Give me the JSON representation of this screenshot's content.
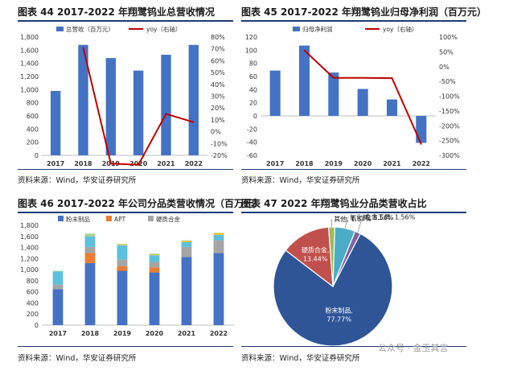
{
  "page": {
    "source": "资料来源：Wind，华安证券研究所",
    "watermark": "公众号 · 金玉其言"
  },
  "colors": {
    "bar": "#4472c4",
    "line": "#c00000",
    "rule": "#1f3a78",
    "powder": "#4472c4",
    "apt": "#ed7d31",
    "hard": "#a5a5a5",
    "alloy": "#ffc000",
    "tungsten_oxide": "#5bc0de",
    "other": "#a9d18e",
    "pie_powder": "#2f5597",
    "pie_hard": "#c0504d",
    "pie_alloy": "#8064a2",
    "pie_oxide": "#4bacc6",
    "pie_other": "#9bbb59"
  },
  "chart_data": [
    {
      "id": "fig44",
      "type": "bar",
      "title": "图表 44 2017-2022 年翔鹭钨业总营收情况",
      "categories": [
        "2017",
        "2018",
        "2019",
        "2020",
        "2021",
        "2022"
      ],
      "series": [
        {
          "name": "总营收（百万元）",
          "type": "bar",
          "axis": "left",
          "values": [
            980,
            1680,
            1480,
            1290,
            1530,
            1680
          ]
        },
        {
          "name": "yoy（右轴）",
          "type": "line",
          "axis": "right",
          "values": [
            null,
            71,
            -27,
            -28,
            15,
            8
          ]
        }
      ],
      "ylim": [
        0,
        1800
      ],
      "yticks": [
        "0",
        "200",
        "400",
        "600",
        "800",
        "1,000",
        "1,200",
        "1,400",
        "1,600",
        "1,800"
      ],
      "y2lim": [
        -20,
        80
      ],
      "y2ticks": [
        "-20%",
        "-10%",
        "0%",
        "10%",
        "20%",
        "30%",
        "40%",
        "50%",
        "60%",
        "70%",
        "80%"
      ],
      "legend": "top"
    },
    {
      "id": "fig45",
      "type": "bar",
      "title": "图表 45 2017-2022 年翔鹭钨业归母净利润（百万元）",
      "categories": [
        "2017",
        "2018",
        "2019",
        "2020",
        "2021",
        "2022"
      ],
      "series": [
        {
          "name": "归母净利润",
          "type": "bar",
          "axis": "left",
          "values": [
            69,
            107,
            66,
            41,
            25,
            -41
          ]
        },
        {
          "name": "yoy（右轴）",
          "type": "line",
          "axis": "right",
          "values": [
            null,
            55,
            -38,
            -38,
            -39,
            -262
          ]
        }
      ],
      "ylim": [
        -60,
        120
      ],
      "yticks": [
        "-60",
        "-40",
        "-20",
        "0",
        "20",
        "40",
        "60",
        "80",
        "100",
        "120"
      ],
      "y2lim": [
        -300,
        100
      ],
      "y2ticks": [
        "-300%",
        "-250%",
        "-200%",
        "-150%",
        "-100%",
        "-50%",
        "0%",
        "50%",
        "100%"
      ],
      "legend": "top"
    },
    {
      "id": "fig46",
      "type": "bar",
      "stacked": true,
      "title": "图表 46 2017-2022 年公司分品类营收情况（百万元）",
      "categories": [
        "2017",
        "2018",
        "2019",
        "2020",
        "2021",
        "2022"
      ],
      "series": [
        {
          "name": "粉末制品",
          "key": "powder",
          "values": [
            650,
            1120,
            980,
            950,
            1230,
            1300
          ]
        },
        {
          "name": "APT",
          "key": "apt",
          "values": [
            0,
            180,
            80,
            90,
            0,
            0
          ]
        },
        {
          "name": "硬质合金",
          "key": "hard",
          "values": [
            80,
            110,
            120,
            100,
            180,
            230
          ]
        },
        {
          "name": "",
          "key": "tungsten_oxide",
          "values": [
            240,
            190,
            260,
            120,
            90,
            100
          ]
        },
        {
          "name": "",
          "key": "alloy",
          "values": [
            0,
            0,
            10,
            10,
            20,
            25
          ]
        },
        {
          "name": "",
          "key": "other",
          "values": [
            10,
            50,
            15,
            20,
            10,
            10
          ]
        }
      ],
      "ylim": [
        0,
        1800
      ],
      "yticks": [
        "0",
        "200",
        "400",
        "600",
        "800",
        "1,000",
        "1,200",
        "1,400",
        "1,600",
        "1,800"
      ],
      "legend": "top"
    },
    {
      "id": "fig47",
      "type": "pie",
      "title": "图表 47 2022 年翔鹭钨业分品类营收占比",
      "slices": [
        {
          "label": "粉末制品,",
          "pct": "77.77%",
          "value": 77.77,
          "key": "pie_powder"
        },
        {
          "label": "硬质合金,",
          "pct": "13.44%",
          "value": 13.44,
          "key": "pie_hard"
        },
        {
          "label": "其他, 1.67%",
          "pct": "",
          "value": 1.67,
          "key": "pie_other"
        },
        {
          "label": "氧化钨, 5.56%",
          "pct": "",
          "value": 5.56,
          "key": "pie_oxide"
        },
        {
          "label": "合金工具, 1.56%",
          "pct": "",
          "value": 1.56,
          "key": "pie_alloy"
        }
      ]
    }
  ]
}
